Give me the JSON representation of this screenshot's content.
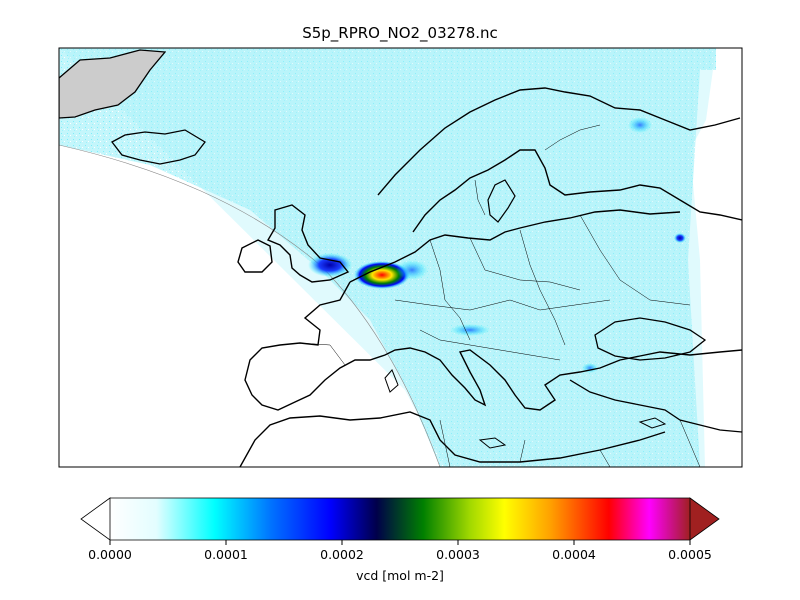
{
  "figure": {
    "title": "S5p_RPRO_NO2_03278.nc"
  },
  "map": {
    "projection": "orthographic-view",
    "region": "Europe",
    "coastlines": true,
    "country_borders": true,
    "colors": {
      "swath_base": "#c8f6fb",
      "swath_mid": "#5fe9f6",
      "land_outline": "#000000",
      "border": "#000000",
      "ice": "#c8c8c8",
      "hotspot_low": "#1010ff",
      "hotspot_high": "#ffe600",
      "hotspot_peak": "#ff0000"
    }
  },
  "colorbar": {
    "label": "vcd [mol m-2]",
    "vmin": 0.0,
    "vmax": 0.0005,
    "extend": "both",
    "ticks": [
      "0.0000",
      "0.0001",
      "0.0002",
      "0.0003",
      "0.0004",
      "0.0005"
    ],
    "stops": [
      {
        "v": 0.0,
        "c": "#ffffff"
      },
      {
        "v": 0.08,
        "c": "#e3fdff"
      },
      {
        "v": 0.18,
        "c": "#00ffff"
      },
      {
        "v": 0.28,
        "c": "#0070ff"
      },
      {
        "v": 0.38,
        "c": "#0000ff"
      },
      {
        "v": 0.46,
        "c": "#00004a"
      },
      {
        "v": 0.54,
        "c": "#008000"
      },
      {
        "v": 0.62,
        "c": "#a0d800"
      },
      {
        "v": 0.68,
        "c": "#ffff00"
      },
      {
        "v": 0.76,
        "c": "#ffa000"
      },
      {
        "v": 0.86,
        "c": "#ff0000"
      },
      {
        "v": 0.93,
        "c": "#ff00ff"
      },
      {
        "v": 1.0,
        "c": "#a02020"
      }
    ]
  }
}
